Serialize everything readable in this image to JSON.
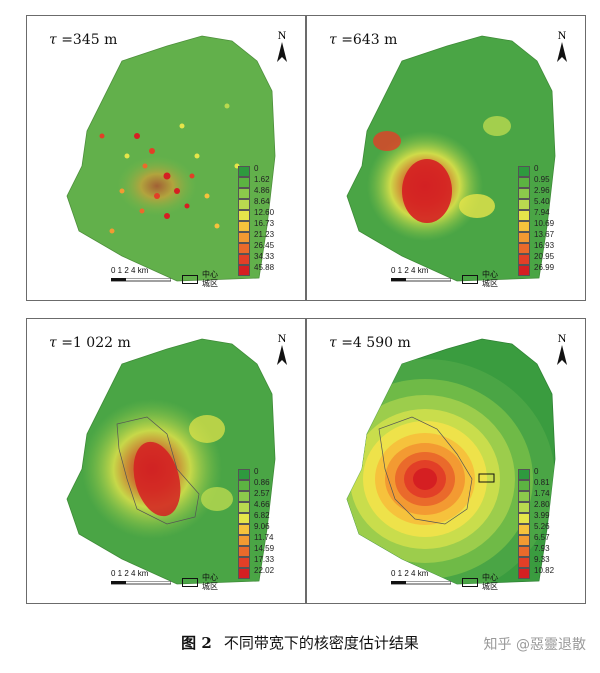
{
  "panels": [
    {
      "tau_symbol": "τ",
      "tau_value": "=345 m",
      "north": "N",
      "legend": [
        "0",
        "1.62",
        "4.86",
        "8.64",
        "12.60",
        "16.73",
        "21.23",
        "26.45",
        "34.33",
        "45.88"
      ],
      "scale_label": "0 1 2   4 km",
      "center_label": "中心\n城区"
    },
    {
      "tau_symbol": "τ",
      "tau_value": "=643 m",
      "north": "N",
      "legend": [
        "0",
        "0.95",
        "2.96",
        "5.40",
        "7.94",
        "10.69",
        "13.67",
        "16.93",
        "20.95",
        "26.99"
      ],
      "scale_label": "0 1 2   4 km",
      "center_label": "中心\n城区"
    },
    {
      "tau_symbol": "τ",
      "tau_value": "=1 022 m",
      "north": "N",
      "legend": [
        "0",
        "0.86",
        "2.57",
        "4.66",
        "6.82",
        "9.06",
        "11.74",
        "14.59",
        "17.33",
        "22.02"
      ],
      "scale_label": "0 1 2   4 km",
      "center_label": "中心\n城区"
    },
    {
      "tau_symbol": "τ",
      "tau_value": "=4 590 m",
      "north": "N",
      "legend": [
        "0",
        "0.81",
        "1.74",
        "2.80",
        "3.99",
        "5.26",
        "6.57",
        "7.93",
        "9.33",
        "10.82"
      ],
      "scale_label": "0 1 2   4 km",
      "center_label": "中心\n城区"
    }
  ],
  "legend_colors": [
    "#2e9a3e",
    "#5cb341",
    "#8cc84b",
    "#b9d94f",
    "#e6e54a",
    "#f6c23c",
    "#f39a32",
    "#ea6a2b",
    "#e23f27",
    "#d51f22"
  ],
  "caption": {
    "figure_number": "图 2",
    "text": "不同带宽下的核密度估计结果"
  },
  "watermark": "知乎 @惡靈退散"
}
